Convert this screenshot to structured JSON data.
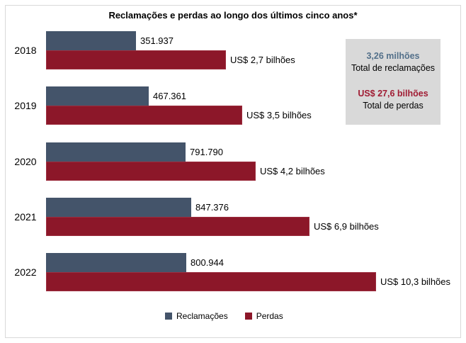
{
  "chart_data": {
    "type": "bar",
    "orientation": "horizontal",
    "title": "Reclamações e perdas ao longo dos últimos cinco anos*",
    "categories": [
      "2018",
      "2019",
      "2020",
      "2021",
      "2022"
    ],
    "series": [
      {
        "name": "Reclamações",
        "color": "#44546a",
        "values": [
          351937,
          467361,
          791790,
          847376,
          800944
        ],
        "labels": [
          "351.937",
          "467.361",
          "791.790",
          "847.376",
          "800.944"
        ]
      },
      {
        "name": "Perdas",
        "color": "#8c1729",
        "values": [
          2.7,
          3.5,
          4.2,
          6.9,
          10.3
        ],
        "labels": [
          "US$ 2,7 bilhões",
          "US$ 3,5 bilhões",
          "US$ 4,2 bilhões",
          "US$ 6,9 bilhões",
          "US$ 10,3 bilhões"
        ]
      }
    ],
    "annotations": [
      {
        "value": "3,26 milhões",
        "caption": "Total de reclamações",
        "color": "#53708a"
      },
      {
        "value": "US$ 27,6 bilhões",
        "caption": "Total de perdas",
        "color": "#a01c33"
      }
    ],
    "grid": false,
    "legend": "bottom"
  }
}
